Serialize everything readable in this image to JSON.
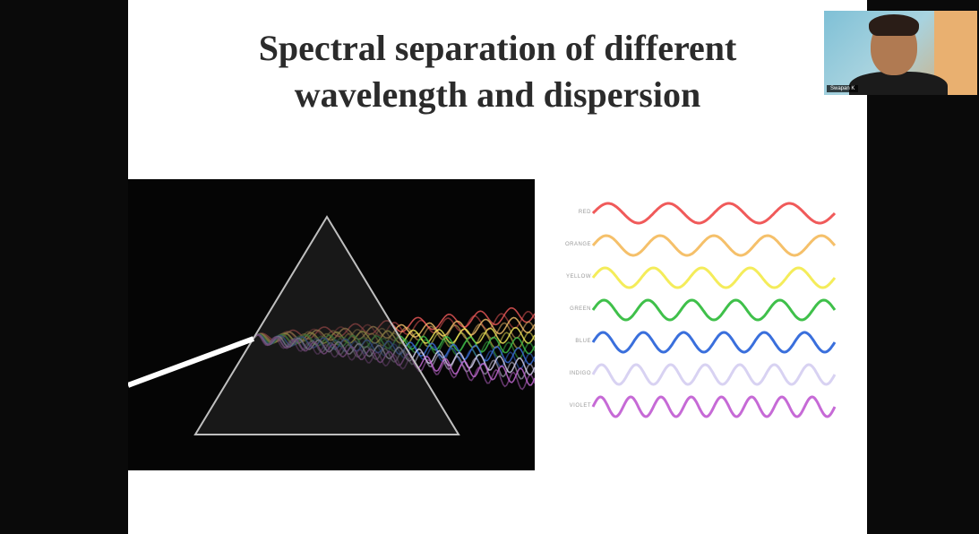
{
  "slide": {
    "title_line1": "Spectral separation of different",
    "title_line2": "wavelength and dispersion"
  },
  "spectrum": {
    "bands": [
      {
        "label": "RED",
        "color": "#f05a5a",
        "cycles": 4
      },
      {
        "label": "ORANGE",
        "color": "#f5c06a",
        "cycles": 4.5
      },
      {
        "label": "YELLOW",
        "color": "#f4ec5a",
        "cycles": 5
      },
      {
        "label": "GREEN",
        "color": "#3fc04a",
        "cycles": 5.5
      },
      {
        "label": "BLUE",
        "color": "#3a6fdc",
        "cycles": 6
      },
      {
        "label": "INDIGO",
        "color": "#d8d2f2",
        "cycles": 7
      },
      {
        "label": "VIOLET",
        "color": "#c66ad6",
        "cycles": 8
      }
    ]
  },
  "webcam": {
    "participant_name": "Swapan K"
  },
  "colors": {
    "background": "#0b0b0b",
    "slide": "#ffffff",
    "title": "#2b2b2b",
    "prism_outline": "#bfbfbf",
    "light_beam": "#ffffff"
  }
}
